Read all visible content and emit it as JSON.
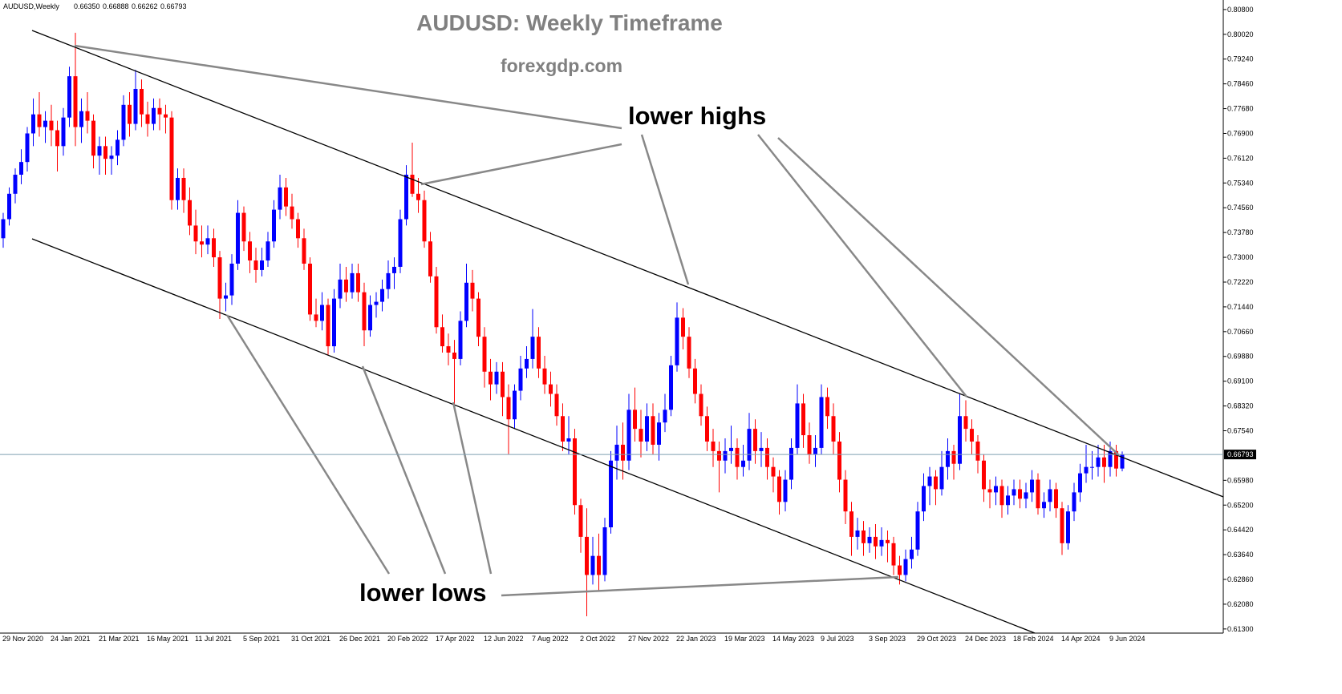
{
  "chart_data": {
    "type": "candlestick",
    "title": "AUDUSD: Weekly Timeframe",
    "subtitle": "forexgdp.com",
    "symbol": "AUDUSD,Weekly",
    "ohlc_labels": [
      "0.66350",
      "0.66888",
      "0.66262",
      "0.66793"
    ],
    "annotations": [
      "lower highs",
      "lower lows"
    ],
    "up_color": "#0000ff",
    "down_color": "#ff0000",
    "price_line_color": "#7f9fb0",
    "ylim": [
      0.6117,
      0.811
    ],
    "yticks": [
      {
        "value": 0.808,
        "label": "0.80800"
      },
      {
        "value": 0.8002,
        "label": "0.80020"
      },
      {
        "value": 0.7924,
        "label": "0.79240"
      },
      {
        "value": 0.7846,
        "label": "0.78460"
      },
      {
        "value": 0.7768,
        "label": "0.77680"
      },
      {
        "value": 0.769,
        "label": "0.76900"
      },
      {
        "value": 0.7612,
        "label": "0.76120"
      },
      {
        "value": 0.7534,
        "label": "0.75340"
      },
      {
        "value": 0.7456,
        "label": "0.74560"
      },
      {
        "value": 0.7378,
        "label": "0.73780"
      },
      {
        "value": 0.73,
        "label": "0.73000"
      },
      {
        "value": 0.7222,
        "label": "0.72220"
      },
      {
        "value": 0.7144,
        "label": "0.71440"
      },
      {
        "value": 0.7066,
        "label": "0.70660"
      },
      {
        "value": 0.6988,
        "label": "0.69880"
      },
      {
        "value": 0.691,
        "label": "0.69100"
      },
      {
        "value": 0.6832,
        "label": "0.68320"
      },
      {
        "value": 0.6754,
        "label": "0.67540"
      },
      {
        "value": 0.6598,
        "label": "0.65980"
      },
      {
        "value": 0.652,
        "label": "0.65200"
      },
      {
        "value": 0.6442,
        "label": "0.64420"
      },
      {
        "value": 0.6364,
        "label": "0.63640"
      },
      {
        "value": 0.6286,
        "label": "0.62860"
      },
      {
        "value": 0.6208,
        "label": "0.62080"
      },
      {
        "value": 0.613,
        "label": "0.61300"
      }
    ],
    "categories": [
      "29 Nov 2020",
      null,
      null,
      null,
      null,
      null,
      null,
      null,
      "24 Jan 2021",
      null,
      null,
      null,
      null,
      null,
      null,
      null,
      "21 Mar 2021",
      null,
      null,
      null,
      null,
      null,
      null,
      null,
      "16 May 2021",
      null,
      null,
      null,
      null,
      null,
      null,
      null,
      "11 Jul 2021",
      null,
      null,
      null,
      null,
      null,
      null,
      null,
      "5 Sep 2021",
      null,
      null,
      null,
      null,
      null,
      null,
      null,
      "31 Oct 2021",
      null,
      null,
      null,
      null,
      null,
      null,
      null,
      "26 Dec 2021",
      null,
      null,
      null,
      null,
      null,
      null,
      null,
      "20 Feb 2022",
      null,
      null,
      null,
      null,
      null,
      null,
      null,
      "17 Apr 2022",
      null,
      null,
      null,
      null,
      null,
      null,
      null,
      "12 Jun 2022",
      null,
      null,
      null,
      null,
      null,
      null,
      null,
      "7 Aug 2022",
      null,
      null,
      null,
      null,
      null,
      null,
      null,
      "2 Oct 2022",
      null,
      null,
      null,
      null,
      null,
      null,
      null,
      "27 Nov 2022",
      null,
      null,
      null,
      null,
      null,
      null,
      null,
      "22 Jan 2023",
      null,
      null,
      null,
      null,
      null,
      null,
      null,
      "19 Mar 2023",
      null,
      null,
      null,
      null,
      null,
      null,
      null,
      "14 May 2023",
      null,
      null,
      null,
      null,
      null,
      null,
      null,
      "9 Jul 2023",
      null,
      null,
      null,
      null,
      null,
      null,
      null,
      "3 Sep 2023",
      null,
      null,
      null,
      null,
      null,
      null,
      null,
      "29 Oct 2023",
      null,
      null,
      null,
      null,
      null,
      null,
      null,
      "24 Dec 2023",
      null,
      null,
      null,
      null,
      null,
      null,
      null,
      "18 Feb 2024",
      null,
      null,
      null,
      null,
      null,
      null,
      null,
      "14 Apr 2024",
      null,
      null,
      null,
      null,
      null,
      null,
      null,
      "9 Jun 2024",
      null,
      null
    ],
    "candles": [
      [
        0.736,
        0.744,
        0.733,
        0.742
      ],
      [
        0.742,
        0.752,
        0.74,
        0.75
      ],
      [
        0.75,
        0.758,
        0.747,
        0.756
      ],
      [
        0.756,
        0.764,
        0.753,
        0.76
      ],
      [
        0.76,
        0.771,
        0.757,
        0.769
      ],
      [
        0.769,
        0.78,
        0.765,
        0.775
      ],
      [
        0.775,
        0.782,
        0.768,
        0.771
      ],
      [
        0.771,
        0.776,
        0.766,
        0.773
      ],
      [
        0.773,
        0.778,
        0.765,
        0.77
      ],
      [
        0.77,
        0.773,
        0.757,
        0.765
      ],
      [
        0.765,
        0.777,
        0.762,
        0.774
      ],
      [
        0.774,
        0.79,
        0.771,
        0.787
      ],
      [
        0.787,
        0.8007,
        0.765,
        0.771
      ],
      [
        0.771,
        0.78,
        0.766,
        0.776
      ],
      [
        0.776,
        0.782,
        0.769,
        0.773
      ],
      [
        0.773,
        0.775,
        0.758,
        0.762
      ],
      [
        0.762,
        0.768,
        0.756,
        0.765
      ],
      [
        0.765,
        0.768,
        0.756,
        0.761
      ],
      [
        0.761,
        0.765,
        0.756,
        0.762
      ],
      [
        0.762,
        0.77,
        0.759,
        0.767
      ],
      [
        0.767,
        0.781,
        0.765,
        0.778
      ],
      [
        0.778,
        0.782,
        0.768,
        0.772
      ],
      [
        0.772,
        0.789,
        0.77,
        0.783
      ],
      [
        0.783,
        0.786,
        0.771,
        0.775
      ],
      [
        0.775,
        0.779,
        0.768,
        0.772
      ],
      [
        0.772,
        0.78,
        0.77,
        0.777
      ],
      [
        0.777,
        0.78,
        0.77,
        0.775
      ],
      [
        0.775,
        0.778,
        0.769,
        0.774
      ],
      [
        0.774,
        0.776,
        0.745,
        0.748
      ],
      [
        0.748,
        0.758,
        0.745,
        0.755
      ],
      [
        0.755,
        0.758,
        0.744,
        0.748
      ],
      [
        0.748,
        0.752,
        0.737,
        0.74
      ],
      [
        0.74,
        0.745,
        0.731,
        0.735
      ],
      [
        0.735,
        0.74,
        0.73,
        0.734
      ],
      [
        0.734,
        0.74,
        0.731,
        0.736
      ],
      [
        0.736,
        0.739,
        0.727,
        0.73
      ],
      [
        0.73,
        0.732,
        0.7106,
        0.717
      ],
      [
        0.717,
        0.722,
        0.713,
        0.718
      ],
      [
        0.718,
        0.731,
        0.715,
        0.728
      ],
      [
        0.728,
        0.748,
        0.726,
        0.744
      ],
      [
        0.744,
        0.746,
        0.732,
        0.735
      ],
      [
        0.735,
        0.738,
        0.725,
        0.729
      ],
      [
        0.729,
        0.733,
        0.722,
        0.726
      ],
      [
        0.726,
        0.733,
        0.724,
        0.729
      ],
      [
        0.729,
        0.738,
        0.727,
        0.735
      ],
      [
        0.735,
        0.748,
        0.733,
        0.745
      ],
      [
        0.745,
        0.756,
        0.742,
        0.752
      ],
      [
        0.752,
        0.755,
        0.743,
        0.746
      ],
      [
        0.746,
        0.75,
        0.739,
        0.742
      ],
      [
        0.742,
        0.744,
        0.733,
        0.736
      ],
      [
        0.736,
        0.739,
        0.726,
        0.728
      ],
      [
        0.728,
        0.73,
        0.71,
        0.712
      ],
      [
        0.712,
        0.717,
        0.708,
        0.71
      ],
      [
        0.71,
        0.719,
        0.707,
        0.715
      ],
      [
        0.715,
        0.717,
        0.6993,
        0.702
      ],
      [
        0.702,
        0.72,
        0.7,
        0.717
      ],
      [
        0.717,
        0.728,
        0.714,
        0.723
      ],
      [
        0.723,
        0.727,
        0.716,
        0.719
      ],
      [
        0.719,
        0.728,
        0.717,
        0.725
      ],
      [
        0.725,
        0.728,
        0.716,
        0.719
      ],
      [
        0.719,
        0.722,
        0.702,
        0.707
      ],
      [
        0.707,
        0.718,
        0.705,
        0.715
      ],
      [
        0.715,
        0.719,
        0.711,
        0.716
      ],
      [
        0.716,
        0.723,
        0.713,
        0.72
      ],
      [
        0.72,
        0.729,
        0.717,
        0.725
      ],
      [
        0.725,
        0.73,
        0.72,
        0.727
      ],
      [
        0.727,
        0.745,
        0.725,
        0.742
      ],
      [
        0.742,
        0.759,
        0.74,
        0.756
      ],
      [
        0.756,
        0.7661,
        0.749,
        0.75
      ],
      [
        0.75,
        0.755,
        0.744,
        0.748
      ],
      [
        0.748,
        0.751,
        0.733,
        0.735
      ],
      [
        0.735,
        0.738,
        0.722,
        0.724
      ],
      [
        0.724,
        0.727,
        0.706,
        0.708
      ],
      [
        0.708,
        0.712,
        0.7,
        0.702
      ],
      [
        0.702,
        0.706,
        0.696,
        0.7
      ],
      [
        0.7,
        0.704,
        0.683,
        0.698
      ],
      [
        0.698,
        0.713,
        0.696,
        0.71
      ],
      [
        0.71,
        0.728,
        0.708,
        0.722
      ],
      [
        0.722,
        0.726,
        0.713,
        0.717
      ],
      [
        0.717,
        0.719,
        0.702,
        0.705
      ],
      [
        0.705,
        0.708,
        0.689,
        0.694
      ],
      [
        0.694,
        0.698,
        0.685,
        0.69
      ],
      [
        0.69,
        0.697,
        0.687,
        0.694
      ],
      [
        0.694,
        0.697,
        0.68,
        0.686
      ],
      [
        0.686,
        0.69,
        0.6681,
        0.679
      ],
      [
        0.679,
        0.69,
        0.676,
        0.688
      ],
      [
        0.688,
        0.699,
        0.685,
        0.695
      ],
      [
        0.695,
        0.702,
        0.692,
        0.698
      ],
      [
        0.698,
        0.7137,
        0.695,
        0.705
      ],
      [
        0.705,
        0.708,
        0.692,
        0.695
      ],
      [
        0.695,
        0.699,
        0.687,
        0.69
      ],
      [
        0.69,
        0.694,
        0.683,
        0.687
      ],
      [
        0.687,
        0.69,
        0.677,
        0.68
      ],
      [
        0.68,
        0.684,
        0.669,
        0.672
      ],
      [
        0.672,
        0.68,
        0.668,
        0.673
      ],
      [
        0.673,
        0.676,
        0.649,
        0.652
      ],
      [
        0.652,
        0.654,
        0.637,
        0.642
      ],
      [
        0.642,
        0.651,
        0.617,
        0.63
      ],
      [
        0.63,
        0.642,
        0.627,
        0.636
      ],
      [
        0.636,
        0.643,
        0.625,
        0.63
      ],
      [
        0.63,
        0.648,
        0.628,
        0.645
      ],
      [
        0.645,
        0.669,
        0.643,
        0.666
      ],
      [
        0.666,
        0.677,
        0.66,
        0.671
      ],
      [
        0.671,
        0.678,
        0.66,
        0.666
      ],
      [
        0.666,
        0.687,
        0.663,
        0.682
      ],
      [
        0.682,
        0.689,
        0.672,
        0.676
      ],
      [
        0.676,
        0.682,
        0.667,
        0.672
      ],
      [
        0.672,
        0.684,
        0.669,
        0.68
      ],
      [
        0.68,
        0.684,
        0.668,
        0.671
      ],
      [
        0.671,
        0.681,
        0.666,
        0.678
      ],
      [
        0.678,
        0.687,
        0.675,
        0.682
      ],
      [
        0.682,
        0.699,
        0.68,
        0.696
      ],
      [
        0.696,
        0.7158,
        0.694,
        0.711
      ],
      [
        0.711,
        0.714,
        0.701,
        0.705
      ],
      [
        0.705,
        0.708,
        0.692,
        0.695
      ],
      [
        0.695,
        0.698,
        0.684,
        0.687
      ],
      [
        0.687,
        0.69,
        0.677,
        0.68
      ],
      [
        0.68,
        0.683,
        0.669,
        0.672
      ],
      [
        0.672,
        0.676,
        0.664,
        0.669
      ],
      [
        0.669,
        0.672,
        0.656,
        0.666
      ],
      [
        0.666,
        0.673,
        0.662,
        0.669
      ],
      [
        0.669,
        0.677,
        0.665,
        0.67
      ],
      [
        0.67,
        0.673,
        0.66,
        0.664
      ],
      [
        0.664,
        0.671,
        0.661,
        0.666
      ],
      [
        0.666,
        0.681,
        0.663,
        0.676
      ],
      [
        0.676,
        0.679,
        0.665,
        0.669
      ],
      [
        0.669,
        0.675,
        0.664,
        0.67
      ],
      [
        0.67,
        0.673,
        0.66,
        0.664
      ],
      [
        0.664,
        0.667,
        0.656,
        0.661
      ],
      [
        0.661,
        0.663,
        0.649,
        0.653
      ],
      [
        0.653,
        0.663,
        0.65,
        0.66
      ],
      [
        0.66,
        0.673,
        0.657,
        0.67
      ],
      [
        0.67,
        0.69,
        0.668,
        0.684
      ],
      [
        0.684,
        0.687,
        0.67,
        0.674
      ],
      [
        0.674,
        0.678,
        0.665,
        0.668
      ],
      [
        0.668,
        0.674,
        0.664,
        0.67
      ],
      [
        0.67,
        0.69,
        0.668,
        0.686
      ],
      [
        0.686,
        0.689,
        0.676,
        0.68
      ],
      [
        0.68,
        0.684,
        0.668,
        0.672
      ],
      [
        0.672,
        0.675,
        0.656,
        0.66
      ],
      [
        0.66,
        0.663,
        0.646,
        0.65
      ],
      [
        0.65,
        0.653,
        0.636,
        0.642
      ],
      [
        0.642,
        0.648,
        0.638,
        0.644
      ],
      [
        0.644,
        0.647,
        0.636,
        0.64
      ],
      [
        0.64,
        0.645,
        0.637,
        0.642
      ],
      [
        0.642,
        0.646,
        0.635,
        0.639
      ],
      [
        0.639,
        0.645,
        0.636,
        0.641
      ],
      [
        0.641,
        0.644,
        0.634,
        0.64
      ],
      [
        0.64,
        0.642,
        0.63,
        0.633
      ],
      [
        0.633,
        0.636,
        0.627,
        0.63
      ],
      [
        0.63,
        0.638,
        0.628,
        0.635
      ],
      [
        0.635,
        0.642,
        0.632,
        0.638
      ],
      [
        0.638,
        0.653,
        0.636,
        0.65
      ],
      [
        0.65,
        0.662,
        0.647,
        0.658
      ],
      [
        0.658,
        0.664,
        0.652,
        0.661
      ],
      [
        0.661,
        0.663,
        0.652,
        0.657
      ],
      [
        0.657,
        0.669,
        0.655,
        0.664
      ],
      [
        0.664,
        0.673,
        0.66,
        0.669
      ],
      [
        0.669,
        0.671,
        0.66,
        0.665
      ],
      [
        0.665,
        0.6871,
        0.663,
        0.68
      ],
      [
        0.68,
        0.685,
        0.672,
        0.676
      ],
      [
        0.676,
        0.679,
        0.668,
        0.672
      ],
      [
        0.672,
        0.674,
        0.662,
        0.666
      ],
      [
        0.666,
        0.668,
        0.653,
        0.657
      ],
      [
        0.657,
        0.66,
        0.651,
        0.656
      ],
      [
        0.656,
        0.661,
        0.652,
        0.658
      ],
      [
        0.658,
        0.66,
        0.648,
        0.652
      ],
      [
        0.652,
        0.658,
        0.649,
        0.655
      ],
      [
        0.655,
        0.66,
        0.652,
        0.657
      ],
      [
        0.657,
        0.66,
        0.651,
        0.654
      ],
      [
        0.654,
        0.659,
        0.651,
        0.656
      ],
      [
        0.656,
        0.663,
        0.653,
        0.66
      ],
      [
        0.66,
        0.662,
        0.649,
        0.651
      ],
      [
        0.651,
        0.656,
        0.648,
        0.653
      ],
      [
        0.653,
        0.66,
        0.65,
        0.657
      ],
      [
        0.657,
        0.659,
        0.648,
        0.651
      ],
      [
        0.651,
        0.653,
        0.6363,
        0.64
      ],
      [
        0.64,
        0.652,
        0.638,
        0.65
      ],
      [
        0.65,
        0.659,
        0.647,
        0.656
      ],
      [
        0.656,
        0.665,
        0.653,
        0.662
      ],
      [
        0.662,
        0.671,
        0.659,
        0.664
      ],
      [
        0.664,
        0.669,
        0.66,
        0.664
      ],
      [
        0.664,
        0.671,
        0.661,
        0.667
      ],
      [
        0.667,
        0.671,
        0.659,
        0.664
      ],
      [
        0.664,
        0.672,
        0.661,
        0.669
      ],
      [
        0.669,
        0.671,
        0.661,
        0.6635
      ],
      [
        0.6635,
        0.66888,
        0.66262,
        0.66793
      ]
    ]
  }
}
